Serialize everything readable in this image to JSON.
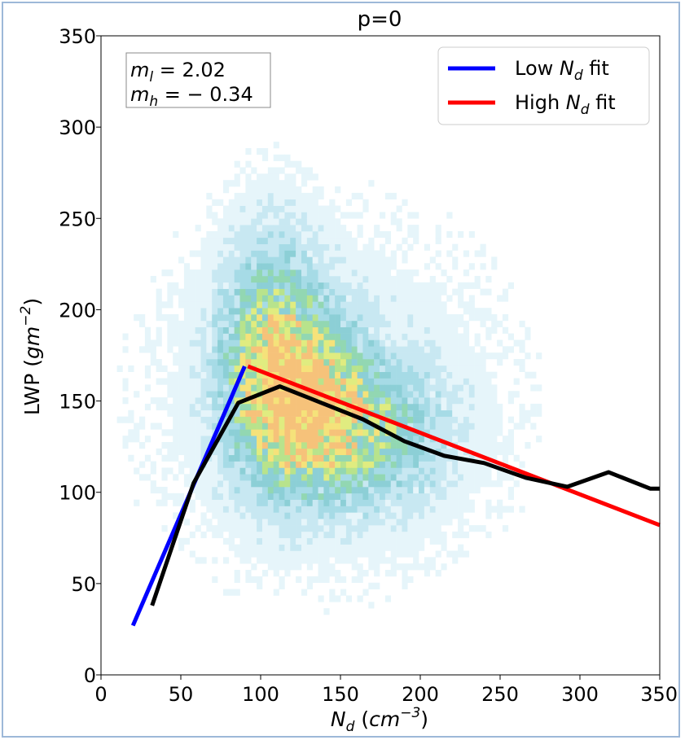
{
  "chart_data": {
    "type": "heatmap",
    "title": "p=0",
    "xlabel": {
      "base": "N",
      "sub": "d",
      "unit_open": " (",
      "unit": "cm",
      "exp": "−3",
      "unit_close": ")"
    },
    "ylabel": {
      "text": "LWP (",
      "unit": "gm",
      "exp": "−2",
      "close": ")"
    },
    "xlim": [
      0,
      350
    ],
    "ylim": [
      0,
      350
    ],
    "xticks": [
      0,
      50,
      100,
      150,
      200,
      250,
      300,
      350
    ],
    "yticks": [
      0,
      50,
      100,
      150,
      200,
      250,
      300,
      350
    ],
    "grid": false,
    "legend_position": "top-right",
    "legend": [
      {
        "label_pre": "Low ",
        "label_var": "N",
        "label_sub": "d",
        "label_post": " fit",
        "color": "#0000ff"
      },
      {
        "label_pre": "High ",
        "label_var": "N",
        "label_sub": "d",
        "label_post": " fit",
        "color": "#ff0000"
      }
    ],
    "annotation": {
      "line1": {
        "var": "m",
        "sub": "l",
        "rest": " = 2.02"
      },
      "line2": {
        "var": "m",
        "sub": "h",
        "rest": " = − 0.34"
      }
    },
    "series": [
      {
        "name": "Low N_d fit",
        "color": "#0000ff",
        "x": [
          20,
          90
        ],
        "y": [
          27,
          169
        ]
      },
      {
        "name": "High N_d fit",
        "color": "#ff0000",
        "x": [
          92,
          350
        ],
        "y": [
          169,
          82
        ]
      },
      {
        "color": "#000000",
        "x": [
          32,
          58,
          86,
          112,
          138,
          164,
          190,
          215,
          240,
          266,
          292,
          318,
          344,
          350
        ],
        "y": [
          38,
          105,
          149,
          158,
          149,
          140,
          128,
          120,
          116,
          108,
          103,
          111,
          102,
          102
        ]
      }
    ],
    "density": {
      "colormap": [
        "#e6f5fa",
        "#c8e8f2",
        "#a6dbe6",
        "#8ccfd6",
        "#92d7b2",
        "#b8e38c",
        "#e0ec80",
        "#f5e27a",
        "#f6c27a"
      ],
      "clusters": [
        {
          "x": 125,
          "y": 150,
          "sx": 24,
          "sy": 28,
          "w": 1.0
        },
        {
          "x": 105,
          "y": 175,
          "sx": 20,
          "sy": 42,
          "w": 0.55
        },
        {
          "x": 165,
          "y": 130,
          "sx": 32,
          "sy": 25,
          "w": 0.45
        },
        {
          "x": 140,
          "y": 150,
          "sx": 80,
          "sy": 70,
          "w": 0.12
        }
      ]
    }
  }
}
